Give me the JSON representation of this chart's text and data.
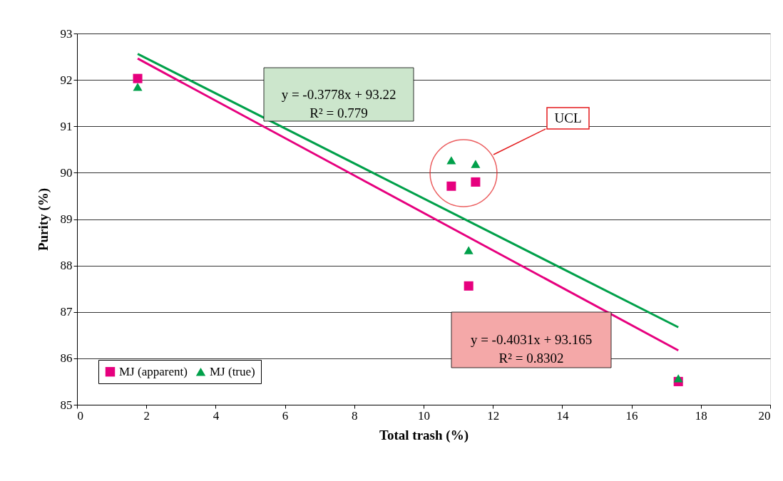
{
  "chart_data": {
    "type": "scatter",
    "xlabel": "Total trash (%)",
    "ylabel": "Purity (%)",
    "xlim": [
      0,
      20
    ],
    "xticks": [
      0,
      2,
      4,
      6,
      8,
      10,
      12,
      14,
      16,
      18,
      20
    ],
    "ylim": [
      85,
      93
    ],
    "yticks": [
      85,
      86,
      87,
      88,
      89,
      90,
      91,
      92,
      93
    ],
    "grid": "y",
    "legend": "bottom left",
    "series": [
      {
        "name": "MJ (apparent)",
        "color": "#e6007e",
        "marker": "square",
        "x": [
          1.75,
          10.8,
          11.5,
          11.3,
          17.35
        ],
        "values": [
          92.03,
          89.71,
          89.8,
          87.56,
          85.5
        ]
      },
      {
        "name": "MJ (true)",
        "color": "#00a04a",
        "marker": "triangle",
        "x": [
          1.75,
          10.8,
          11.5,
          11.3,
          17.35
        ],
        "values": [
          91.85,
          90.27,
          90.19,
          88.33,
          85.57
        ]
      },
      {
        "type": "line",
        "color": "#e6007e",
        "x": [
          1.75,
          17.35
        ],
        "values": [
          92.46,
          86.17
        ]
      },
      {
        "type": "line",
        "color": "#00a04a",
        "x": [
          1.75,
          17.35
        ],
        "values": [
          92.56,
          86.67
        ]
      }
    ],
    "annotations": [
      "y = -0.3778x + 93.22\nR² = 0.779",
      "y = -0.4031x + 93.165\nR² = 0.8302",
      "UCL"
    ]
  }
}
